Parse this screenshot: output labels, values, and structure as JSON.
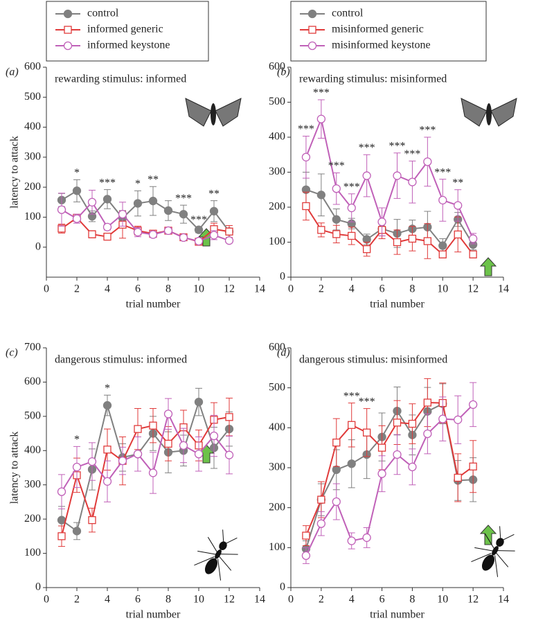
{
  "chart_data": [
    {
      "type": "line",
      "label": "(a)",
      "title": "rewarding stimulus: informed",
      "xlabel": "trial number",
      "ylabel": "latency to attack",
      "x": [
        1,
        2,
        3,
        4,
        5,
        6,
        7,
        8,
        9,
        10,
        11,
        12
      ],
      "series": [
        {
          "name": "control",
          "color": "#808080",
          "marker": "filled-circle",
          "values": [
            157,
            188,
            103,
            160,
            97,
            146,
            154,
            122,
            110,
            58,
            120,
            52
          ],
          "errors": [
            22,
            37,
            18,
            32,
            25,
            42,
            48,
            33,
            30,
            10,
            35,
            20
          ]
        },
        {
          "name": "informed generic",
          "color": "#e03a3a",
          "marker": "open-square",
          "values": [
            62,
            98,
            43,
            35,
            75,
            55,
            45,
            55,
            33,
            18,
            60,
            52
          ],
          "errors": [
            15,
            10,
            12,
            8,
            45,
            15,
            8,
            8,
            8,
            5,
            20,
            20
          ]
        },
        {
          "name": "informed keystone",
          "color": "#c060b8",
          "marker": "open-circle",
          "values": [
            125,
            95,
            150,
            67,
            110,
            50,
            42,
            55,
            32,
            20,
            40,
            22
          ],
          "errors": [
            55,
            15,
            40,
            10,
            40,
            15,
            10,
            10,
            8,
            5,
            15,
            8
          ]
        }
      ],
      "annotations": [
        {
          "text": "*",
          "x": 2
        },
        {
          "text": "***",
          "x": 4
        },
        {
          "text": "*",
          "x": 6
        },
        {
          "text": "**",
          "x": 7
        },
        {
          "text": "***",
          "x": 9
        },
        {
          "text": "***",
          "x": 10
        },
        {
          "text": "**",
          "x": 11
        }
      ],
      "xlim": [
        0,
        14
      ],
      "xticks": [
        0,
        2,
        4,
        6,
        8,
        10,
        12,
        14
      ],
      "ylim": [
        -100,
        600
      ],
      "yticks": [
        0,
        100,
        200,
        300,
        400,
        500,
        600
      ]
    },
    {
      "type": "line",
      "label": "(b)",
      "title": "rewarding stimulus: misinformed",
      "xlabel": "trial number",
      "x": [
        1,
        2,
        3,
        4,
        5,
        6,
        7,
        8,
        9,
        10,
        11,
        12
      ],
      "series": [
        {
          "name": "control",
          "color": "#808080",
          "marker": "filled-circle",
          "values": [
            250,
            235,
            165,
            153,
            108,
            138,
            125,
            138,
            143,
            90,
            165,
            93
          ],
          "errors": [
            50,
            60,
            30,
            15,
            15,
            20,
            40,
            25,
            45,
            20,
            20,
            15
          ]
        },
        {
          "name": "misinformed generic",
          "color": "#e03a3a",
          "marker": "open-square",
          "values": [
            203,
            135,
            123,
            118,
            80,
            135,
            100,
            110,
            103,
            65,
            122,
            65
          ],
          "errors": [
            40,
            20,
            25,
            25,
            20,
            25,
            35,
            35,
            50,
            10,
            50,
            10
          ]
        },
        {
          "name": "misinformed keystone",
          "color": "#c060b8",
          "marker": "open-circle",
          "values": [
            343,
            452,
            253,
            198,
            290,
            158,
            290,
            272,
            330,
            220,
            205,
            110
          ],
          "errors": [
            60,
            55,
            45,
            40,
            60,
            40,
            65,
            60,
            70,
            60,
            45,
            15
          ]
        }
      ],
      "annotations": [
        {
          "text": "***",
          "x": 1
        },
        {
          "text": "***",
          "x": 2
        },
        {
          "text": "***",
          "x": 3
        },
        {
          "text": "***",
          "x": 4
        },
        {
          "text": "***",
          "x": 5
        },
        {
          "text": "***",
          "x": 7
        },
        {
          "text": "***",
          "x": 8
        },
        {
          "text": "***",
          "x": 9
        },
        {
          "text": "***",
          "x": 10
        },
        {
          "text": "**",
          "x": 11
        }
      ],
      "xlim": [
        0,
        14
      ],
      "xticks": [
        0,
        2,
        4,
        6,
        8,
        10,
        12,
        14
      ],
      "ylim": [
        0,
        600
      ],
      "yticks": [
        0,
        100,
        200,
        300,
        400,
        500,
        600
      ]
    },
    {
      "type": "line",
      "label": "(c)",
      "title": "dangerous stimulus: informed",
      "xlabel": "trial number",
      "ylabel": "latency to attack",
      "x": [
        1,
        2,
        3,
        4,
        5,
        6,
        7,
        8,
        9,
        10,
        11,
        12
      ],
      "series": [
        {
          "color": "#808080",
          "marker": "filled-circle",
          "values": [
            197,
            165,
            345,
            532,
            380,
            390,
            450,
            395,
            400,
            542,
            408,
            463
          ],
          "errors": [
            40,
            25,
            60,
            30,
            40,
            50,
            50,
            60,
            45,
            40,
            60,
            50
          ]
        },
        {
          "color": "#e03a3a",
          "marker": "open-square",
          "values": [
            150,
            328,
            197,
            403,
            370,
            463,
            473,
            420,
            468,
            415,
            490,
            498
          ],
          "errors": [
            30,
            50,
            35,
            60,
            70,
            60,
            50,
            50,
            50,
            45,
            50,
            55
          ]
        },
        {
          "color": "#c060b8",
          "marker": "open-circle",
          "values": [
            280,
            352,
            368,
            310,
            370,
            390,
            335,
            507,
            415,
            390,
            443,
            387
          ],
          "errors": [
            50,
            60,
            55,
            60,
            40,
            50,
            60,
            45,
            50,
            50,
            60,
            55
          ]
        }
      ],
      "annotations": [
        {
          "text": "*",
          "x": 2
        },
        {
          "text": "*",
          "x": 4
        }
      ],
      "xlim": [
        0,
        14
      ],
      "xticks": [
        0,
        2,
        4,
        6,
        8,
        10,
        12,
        14
      ],
      "ylim": [
        0,
        700
      ],
      "yticks": [
        0,
        100,
        200,
        300,
        400,
        500,
        600,
        700
      ]
    },
    {
      "type": "line",
      "label": "(d)",
      "title": "dangerous stimulus: misinformed",
      "xlabel": "trial number",
      "x": [
        1,
        2,
        3,
        4,
        5,
        6,
        7,
        8,
        9,
        10,
        11,
        12
      ],
      "series": [
        {
          "color": "#808080",
          "marker": "filled-circle",
          "values": [
            97,
            220,
            295,
            310,
            333,
            377,
            442,
            382,
            441,
            460,
            268,
            270
          ],
          "errors": [
            20,
            40,
            50,
            60,
            60,
            60,
            60,
            50,
            60,
            50,
            50,
            55
          ]
        },
        {
          "color": "#e03a3a",
          "marker": "open-square",
          "values": [
            130,
            220,
            363,
            407,
            388,
            350,
            413,
            410,
            463,
            462,
            275,
            303
          ],
          "errors": [
            25,
            45,
            60,
            55,
            60,
            55,
            55,
            50,
            60,
            50,
            60,
            65
          ]
        },
        {
          "color": "#c060b8",
          "marker": "open-circle",
          "values": [
            80,
            160,
            215,
            117,
            125,
            285,
            333,
            302,
            385,
            422,
            420,
            458
          ],
          "errors": [
            20,
            30,
            45,
            20,
            25,
            45,
            50,
            45,
            50,
            55,
            60,
            55
          ]
        }
      ],
      "annotations": [
        {
          "text": "***",
          "x": 4
        },
        {
          "text": "***",
          "x": 5
        }
      ],
      "xlim": [
        0,
        14
      ],
      "xticks": [
        0,
        2,
        4,
        6,
        8,
        10,
        12,
        14
      ],
      "ylim": [
        0,
        600
      ],
      "yticks": [
        0,
        100,
        200,
        300,
        400,
        500,
        600
      ]
    }
  ]
}
